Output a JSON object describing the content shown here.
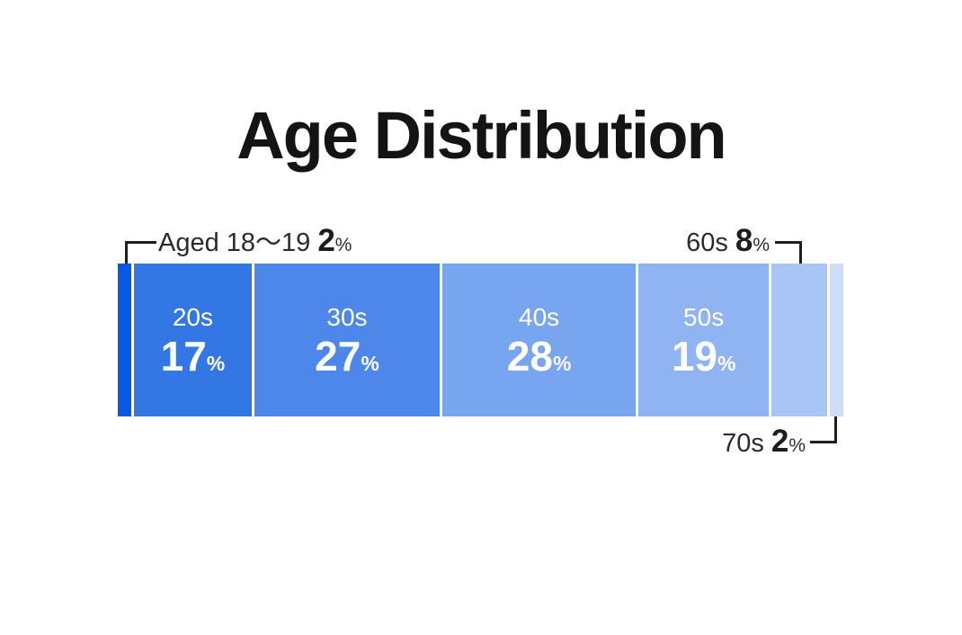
{
  "title": "Age Distribution",
  "chart_data": {
    "type": "bar",
    "subtype": "horizontal-stacked-percentage",
    "title": "Age Distribution",
    "unit": "%",
    "categories": [
      "Aged 18〜19",
      "20s",
      "30s",
      "40s",
      "50s",
      "60s",
      "70s"
    ],
    "values": [
      2,
      17,
      27,
      28,
      19,
      8,
      2
    ],
    "colors": [
      "#0a58e4",
      "#3277e4",
      "#4c87e9",
      "#78a5ef",
      "#90b4f2",
      "#a9c5f6",
      "#cdddfa"
    ],
    "labeled_inside": [
      false,
      true,
      true,
      true,
      true,
      false,
      false
    ],
    "legend_position": "none",
    "grid": false,
    "callouts": [
      {
        "label": "Aged 18〜19",
        "value": 2,
        "unit": "%",
        "position": "top-left"
      },
      {
        "label": "60s",
        "value": 8,
        "unit": "%",
        "position": "top-right"
      },
      {
        "label": "70s",
        "value": 2,
        "unit": "%",
        "position": "bottom-right"
      }
    ]
  }
}
